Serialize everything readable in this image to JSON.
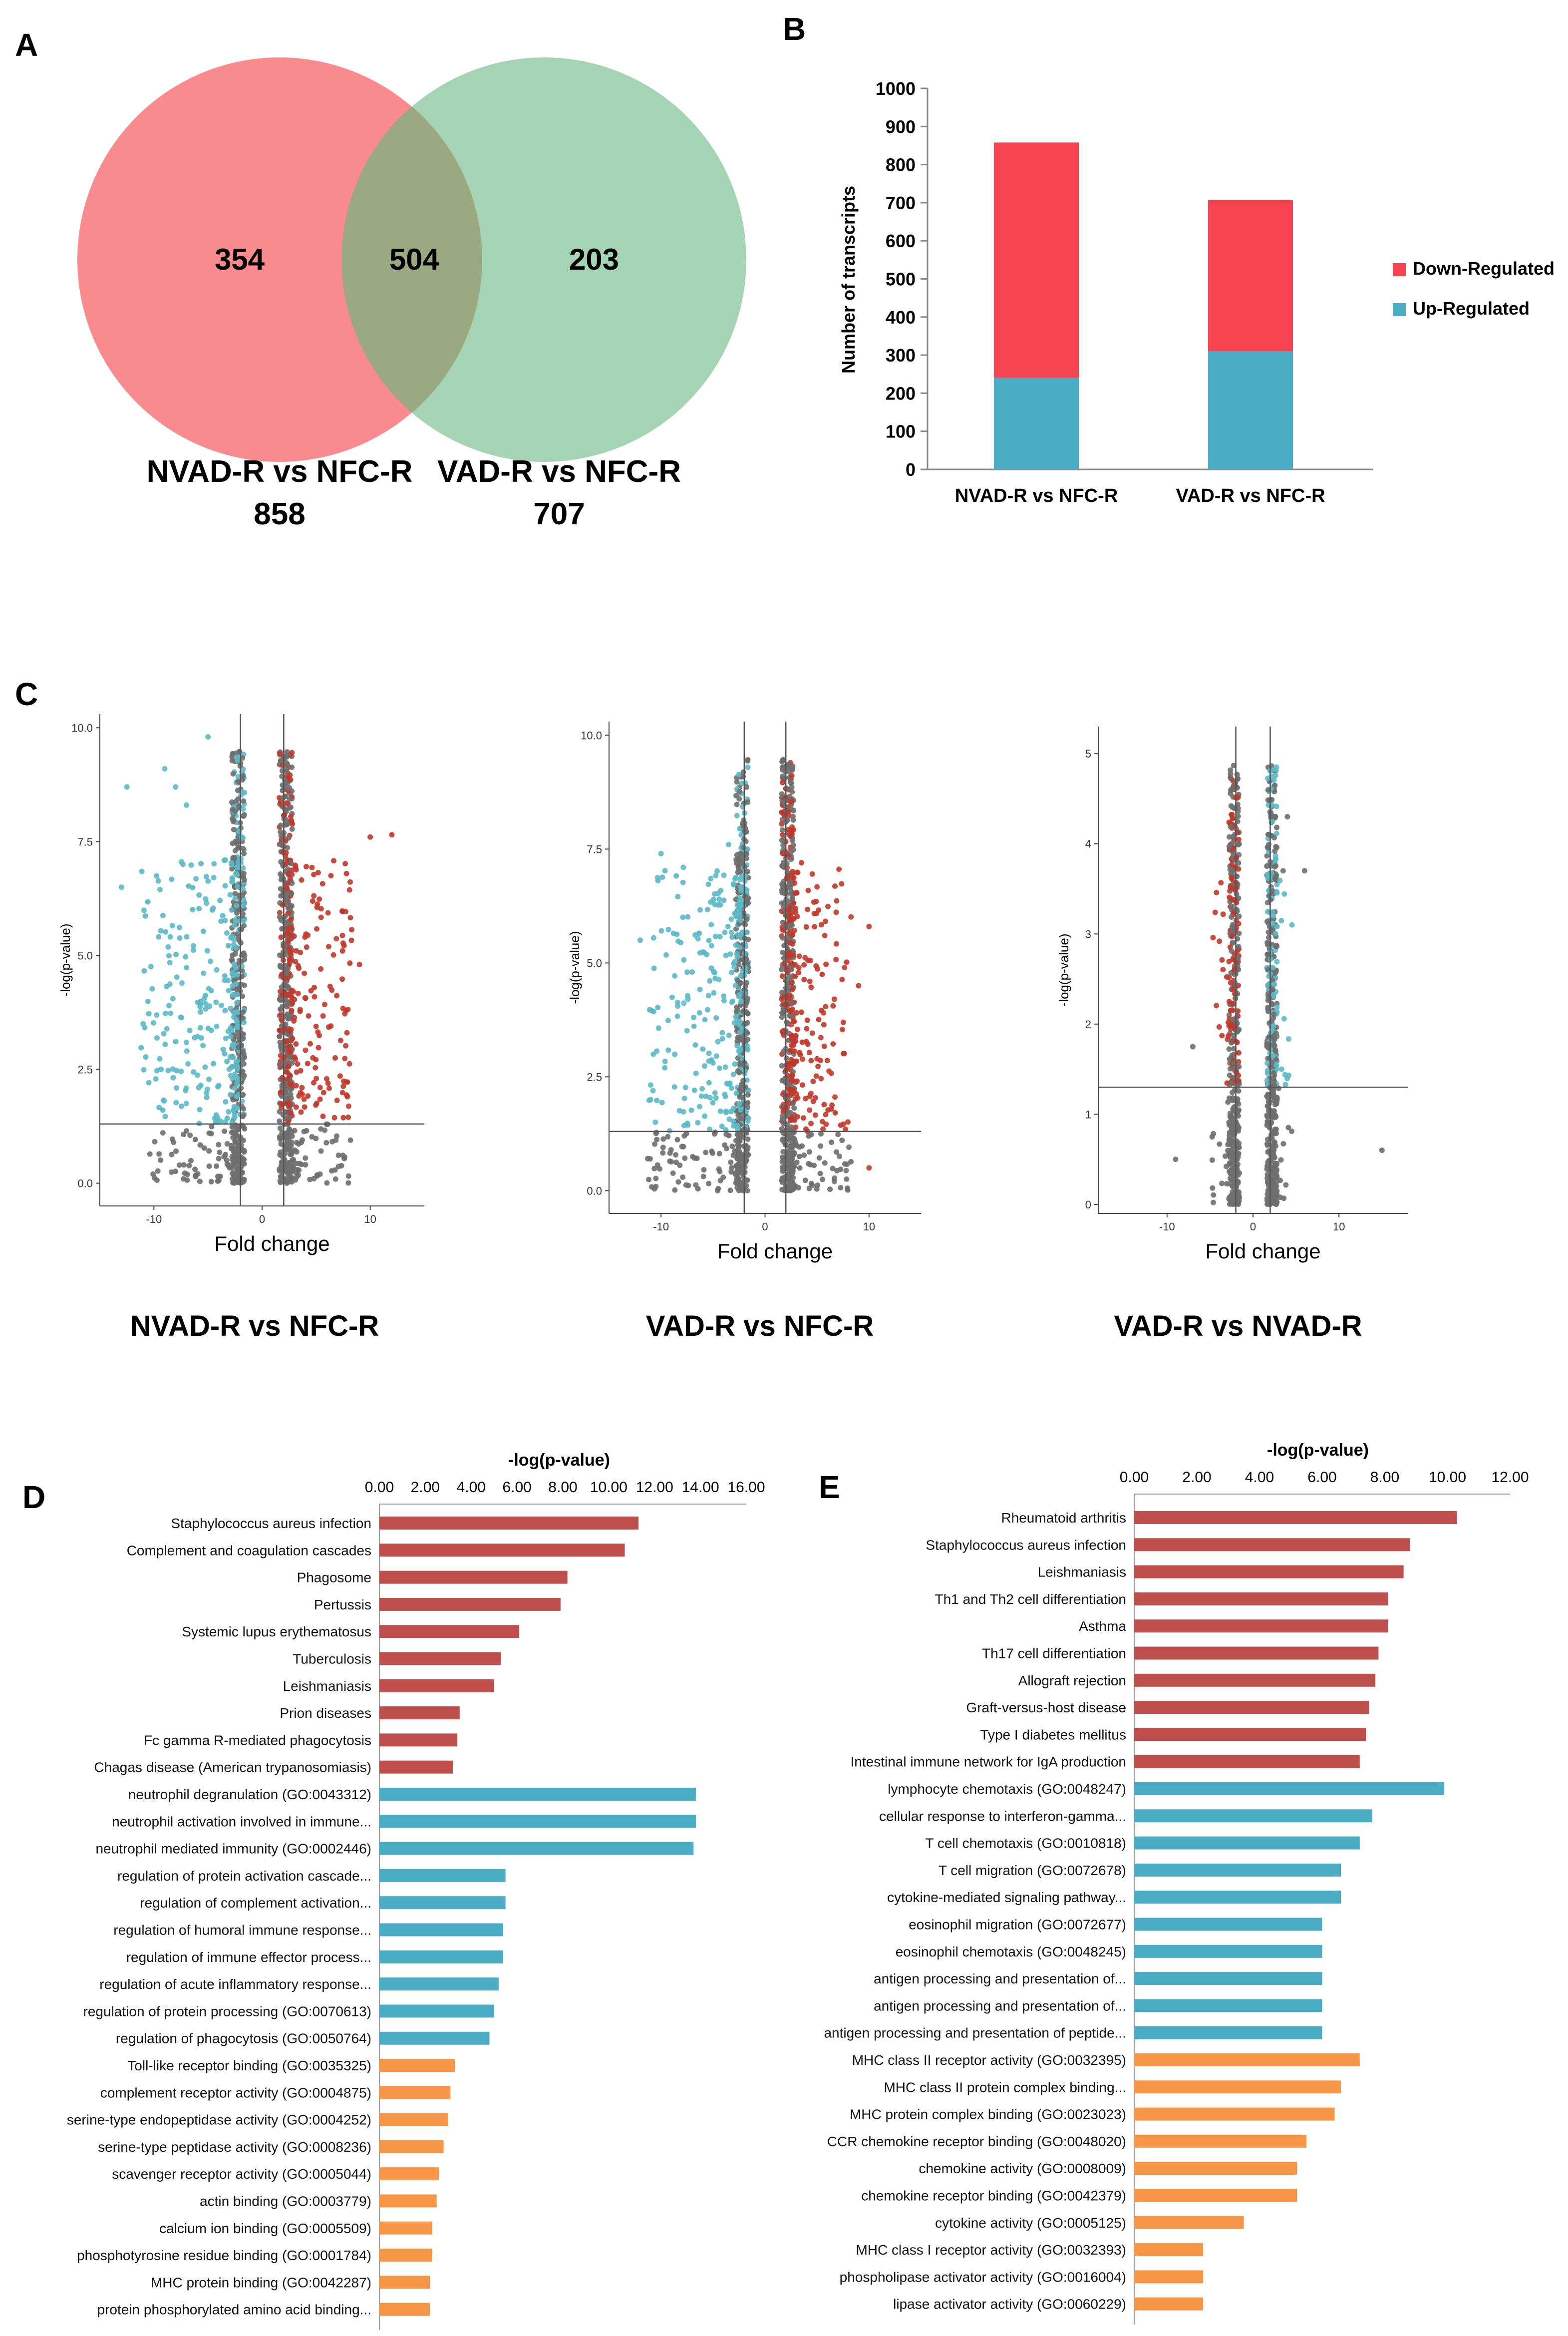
{
  "chart_data": [
    {
      "panel": "A",
      "type": "venn",
      "sets": [
        {
          "name": "NVAD-R vs NFC-R",
          "total": "858",
          "unique": "354",
          "color": "#F8767A"
        },
        {
          "name": "VAD-R vs NFC-R",
          "total": "707",
          "unique": "203",
          "color": "#8DC9A0"
        }
      ],
      "overlap": "504"
    },
    {
      "panel": "B",
      "type": "bar",
      "stacked": true,
      "categories": [
        "NVAD-R vs NFC-R",
        "VAD-R vs NFC-R"
      ],
      "series": [
        {
          "name": "Up-Regulated",
          "values": [
            240,
            310
          ],
          "color": "#4BACC6"
        },
        {
          "name": "Down-Regulated",
          "values": [
            618,
            397
          ],
          "color": "#F74250"
        }
      ],
      "legend": [
        "Down-Regulated",
        "Up-Regulated"
      ],
      "ylabel": "Number of transcripts",
      "ylim": [
        0,
        1000
      ],
      "yticks": [
        "0",
        "100",
        "200",
        "300",
        "400",
        "500",
        "600",
        "700",
        "800",
        "900",
        "1000"
      ]
    },
    {
      "panel": "C",
      "type": "scatter",
      "plots": [
        {
          "title": "NVAD-R vs NFC-R",
          "xlabel": "Fold change",
          "ylabel": "-log(p-value)",
          "xlim": [
            -15,
            15
          ],
          "ylim": [
            -0.5,
            10.3
          ],
          "yticks": [
            "0.0",
            "2.5",
            "5.0",
            "7.5",
            "10.0"
          ],
          "xticks": [
            "-10",
            "0",
            "10"
          ],
          "vlines": [
            -2,
            2
          ],
          "hline": 1.3,
          "seed": 11,
          "outliers": [
            [
              10,
              7.6
            ],
            [
              12,
              7.65
            ],
            [
              -12.5,
              8.7
            ],
            [
              -9,
              9.1
            ],
            [
              -5,
              9.8
            ],
            [
              -11,
              3.5
            ],
            [
              -13,
              6.5
            ],
            [
              -8,
              8.7
            ],
            [
              9,
              4.8
            ],
            [
              -7,
              8.3
            ]
          ]
        },
        {
          "title": "VAD-R vs NFC-R",
          "xlabel": "Fold change",
          "ylabel": "-log(p-value)",
          "xlim": [
            -15,
            15
          ],
          "ylim": [
            -0.5,
            10.3
          ],
          "yticks": [
            "0.0",
            "2.5",
            "5.0",
            "7.5",
            "10.0"
          ],
          "xticks": [
            "-10",
            "0",
            "10"
          ],
          "vlines": [
            -2,
            2
          ],
          "hline": 1.3,
          "seed": 23,
          "outliers": [
            [
              -10,
              7.4
            ],
            [
              -3.5,
              7.6
            ],
            [
              3.5,
              7.2
            ],
            [
              10,
              5.8
            ],
            [
              -12,
              5.5
            ],
            [
              9,
              4.5
            ],
            [
              -11,
              2.0
            ],
            [
              10,
              0.5
            ]
          ]
        },
        {
          "title": "VAD-R vs NVAD-R",
          "xlabel": "Fold change",
          "ylabel": "-log(p-value)",
          "xlim": [
            -18,
            18
          ],
          "ylim": [
            -0.1,
            5.3
          ],
          "yticks": [
            "0",
            "1",
            "2",
            "3",
            "4",
            "5"
          ],
          "xticks": [
            "-10",
            "0",
            "10"
          ],
          "vlines": [
            -2,
            2
          ],
          "hline": 1.3,
          "seed": 37,
          "outliers": [
            [
              -7,
              1.75
            ],
            [
              6,
              3.7
            ],
            [
              15,
              0.6
            ],
            [
              -9,
              0.5
            ],
            [
              4,
              4.3
            ],
            [
              3.5,
              3.7
            ]
          ]
        }
      ]
    },
    {
      "panel": "D",
      "type": "bar",
      "orientation": "horizontal",
      "xlabel": "-log(p-value)",
      "xlim": [
        0,
        16
      ],
      "xticks": [
        "0.00",
        "2.00",
        "4.00",
        "6.00",
        "8.00",
        "10.00",
        "12.00",
        "14.00",
        "16.00"
      ],
      "categories": [
        "Staphylococcus aureus infection",
        "Complement and coagulation cascades",
        "Phagosome",
        "Pertussis",
        "Systemic lupus erythematosus",
        "Tuberculosis",
        "Leishmaniasis",
        "Prion diseases",
        "Fc gamma R-mediated phagocytosis",
        "Chagas disease (American trypanosomiasis)",
        "neutrophil degranulation (GO:0043312)",
        "neutrophil activation involved in immune...",
        "neutrophil mediated immunity (GO:0002446)",
        "regulation of protein activation cascade...",
        "regulation of complement activation...",
        "regulation of humoral immune response...",
        "regulation of immune effector process...",
        "regulation of acute inflammatory response...",
        "regulation of protein processing (GO:0070613)",
        "regulation of phagocytosis (GO:0050764)",
        "Toll-like receptor binding (GO:0035325)",
        "complement receptor activity (GO:0004875)",
        "serine-type endopeptidase activity (GO:0004252)",
        "serine-type peptidase activity (GO:0008236)",
        "scavenger receptor activity (GO:0005044)",
        "actin binding (GO:0003779)",
        "calcium ion binding (GO:0005509)",
        "phosphotyrosine residue binding (GO:0001784)",
        "MHC protein binding (GO:0042287)",
        "protein phosphorylated amino acid binding..."
      ],
      "values": [
        11.3,
        10.7,
        8.2,
        7.9,
        6.1,
        5.3,
        5.0,
        3.5,
        3.4,
        3.2,
        13.8,
        13.8,
        13.7,
        5.5,
        5.5,
        5.4,
        5.4,
        5.2,
        5.0,
        4.8,
        3.3,
        3.1,
        3.0,
        2.8,
        2.6,
        2.5,
        2.3,
        2.3,
        2.2,
        2.2
      ],
      "colors": [
        "#C0504D",
        "#C0504D",
        "#C0504D",
        "#C0504D",
        "#C0504D",
        "#C0504D",
        "#C0504D",
        "#C0504D",
        "#C0504D",
        "#C0504D",
        "#4BACC6",
        "#4BACC6",
        "#4BACC6",
        "#4BACC6",
        "#4BACC6",
        "#4BACC6",
        "#4BACC6",
        "#4BACC6",
        "#4BACC6",
        "#4BACC6",
        "#F79646",
        "#F79646",
        "#F79646",
        "#F79646",
        "#F79646",
        "#F79646",
        "#F79646",
        "#F79646",
        "#F79646",
        "#F79646"
      ]
    },
    {
      "panel": "E",
      "type": "bar",
      "orientation": "horizontal",
      "xlabel": "-log(p-value)",
      "xlim": [
        0,
        12
      ],
      "xticks": [
        "0.00",
        "2.00",
        "4.00",
        "6.00",
        "8.00",
        "10.00",
        "12.00"
      ],
      "categories": [
        "Rheumatoid arthritis",
        "Staphylococcus aureus infection",
        "Leishmaniasis",
        "Th1 and Th2 cell differentiation",
        "Asthma",
        "Th17 cell differentiation",
        "Allograft rejection",
        "Graft-versus-host disease",
        "Type I diabetes mellitus",
        "Intestinal immune network for IgA production",
        "lymphocyte chemotaxis (GO:0048247)",
        "cellular response to interferon-gamma...",
        "T cell chemotaxis (GO:0010818)",
        "T cell migration (GO:0072678)",
        "cytokine-mediated signaling pathway...",
        "eosinophil migration (GO:0072677)",
        "eosinophil chemotaxis (GO:0048245)",
        "antigen processing and presentation of...",
        "antigen processing and presentation of...",
        "antigen processing and presentation of peptide...",
        "MHC class II receptor activity (GO:0032395)",
        "MHC class II protein complex binding...",
        "MHC protein complex binding (GO:0023023)",
        "CCR chemokine receptor binding (GO:0048020)",
        "chemokine activity (GO:0008009)",
        "chemokine receptor binding (GO:0042379)",
        "cytokine activity (GO:0005125)",
        "MHC class I receptor activity (GO:0032393)",
        "phospholipase activator activity (GO:0016004)",
        "lipase activator activity (GO:0060229)"
      ],
      "values": [
        10.3,
        8.8,
        8.6,
        8.1,
        8.1,
        7.8,
        7.7,
        7.5,
        7.4,
        7.2,
        9.9,
        7.6,
        7.2,
        6.6,
        6.6,
        6.0,
        6.0,
        6.0,
        6.0,
        6.0,
        7.2,
        6.6,
        6.4,
        5.5,
        5.2,
        5.2,
        3.5,
        2.2,
        2.2,
        2.2
      ],
      "colors": [
        "#C0504D",
        "#C0504D",
        "#C0504D",
        "#C0504D",
        "#C0504D",
        "#C0504D",
        "#C0504D",
        "#C0504D",
        "#C0504D",
        "#C0504D",
        "#4BACC6",
        "#4BACC6",
        "#4BACC6",
        "#4BACC6",
        "#4BACC6",
        "#4BACC6",
        "#4BACC6",
        "#4BACC6",
        "#4BACC6",
        "#4BACC6",
        "#F79646",
        "#F79646",
        "#F79646",
        "#F79646",
        "#F79646",
        "#F79646",
        "#F79646",
        "#F79646",
        "#F79646",
        "#F79646"
      ]
    }
  ]
}
